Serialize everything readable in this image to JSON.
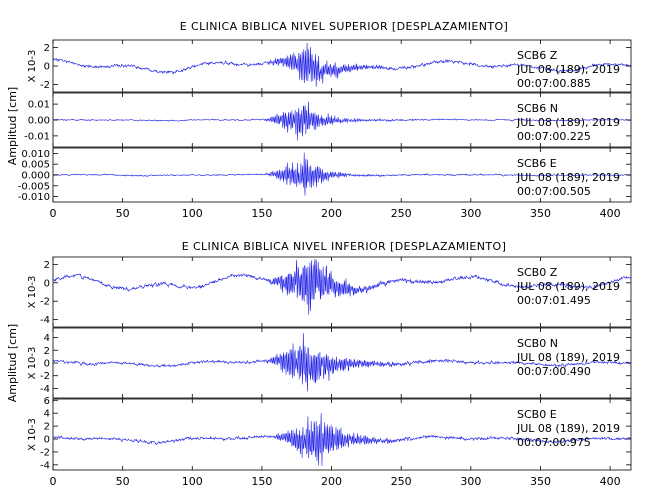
{
  "chart_data": [
    {
      "type": "line",
      "title": "E CLINICA BIBLICA NIVEL SUPERIOR [DESPLAZAMIENTO]",
      "ylabel": "Amplitud [cm]",
      "xlim": [
        0,
        415
      ],
      "x_ticks": [
        "0",
        "50",
        "100",
        "150",
        "200",
        "250",
        "300",
        "350",
        "400"
      ],
      "traces": [
        {
          "station": "SCB6",
          "component": "Z",
          "date": "JUL 08 (189), 2019",
          "time": "00:07:00.885",
          "scale_label": "X 10-3",
          "ylim": [
            -2.8,
            2.8
          ],
          "y_ticks": [
            "-2",
            "0",
            "2"
          ],
          "signal": {
            "strong_start": 150,
            "peak": 185,
            "strong_end": 240,
            "peak_amp": 2.6,
            "noise_amp": 0.25,
            "drift_amp": 0.7,
            "seed": 11
          }
        },
        {
          "station": "SCB6",
          "component": "N",
          "date": "JUL 08 (189), 2019",
          "time": "00:07:00.225",
          "scale_label": "",
          "ylim": [
            -0.017,
            0.017
          ],
          "y_ticks": [
            "-0.01",
            "0.00",
            "0.01"
          ],
          "signal": {
            "strong_start": 150,
            "peak": 178,
            "strong_end": 225,
            "peak_amp": 0.015,
            "noise_amp": 0.0006,
            "drift_amp": 0.0004,
            "seed": 23
          }
        },
        {
          "station": "SCB6",
          "component": "E",
          "date": "JUL 08 (189), 2019",
          "time": "00:07:00.505",
          "scale_label": "",
          "ylim": [
            -0.0125,
            0.0125
          ],
          "y_ticks": [
            "-0.010",
            "-0.005",
            "0.000",
            "0.005",
            "0.010"
          ],
          "signal": {
            "strong_start": 150,
            "peak": 180,
            "strong_end": 220,
            "peak_amp": 0.0105,
            "noise_amp": 0.0005,
            "drift_amp": 0.0003,
            "seed": 37
          }
        }
      ]
    },
    {
      "type": "line",
      "title": "E CLINICA BIBLICA NIVEL INFERIOR [DESPLAZAMIENTO]",
      "ylabel": "Amplitud [cm]",
      "xlim": [
        0,
        415
      ],
      "x_ticks": [
        "0",
        "50",
        "100",
        "150",
        "200",
        "250",
        "300",
        "350",
        "400"
      ],
      "traces": [
        {
          "station": "SCB0",
          "component": "Z",
          "date": "JUL 08 (189), 2019",
          "time": "00:07:01.495",
          "scale_label": "X 10-3",
          "ylim": [
            -4.8,
            2.8
          ],
          "y_ticks": [
            "-4",
            "-2",
            "0",
            "2"
          ],
          "signal": {
            "strong_start": 150,
            "peak": 185,
            "strong_end": 240,
            "peak_amp": 3.9,
            "noise_amp": 0.3,
            "drift_amp": 0.9,
            "seed": 51
          }
        },
        {
          "station": "SCB0",
          "component": "N",
          "date": "JUL 08 (189), 2019",
          "time": "00:07:00.490",
          "scale_label": "X 10-3",
          "ylim": [
            -5.5,
            5.5
          ],
          "y_ticks": [
            "-4",
            "-2",
            "0",
            "2",
            "4"
          ],
          "signal": {
            "strong_start": 150,
            "peak": 180,
            "strong_end": 250,
            "peak_amp": 5.0,
            "noise_amp": 0.35,
            "drift_amp": 0.5,
            "seed": 67
          }
        },
        {
          "station": "SCB0",
          "component": "E",
          "date": "JUL 08 (189), 2019",
          "time": "00:07:00.975",
          "scale_label": "X 10-3",
          "ylim": [
            -4.8,
            6.2
          ],
          "y_ticks": [
            "-4",
            "-2",
            "0",
            "2",
            "4",
            "6"
          ],
          "signal": {
            "strong_start": 155,
            "peak": 190,
            "strong_end": 250,
            "peak_amp": 5.2,
            "noise_amp": 0.35,
            "drift_amp": 0.5,
            "seed": 79
          }
        }
      ]
    }
  ]
}
